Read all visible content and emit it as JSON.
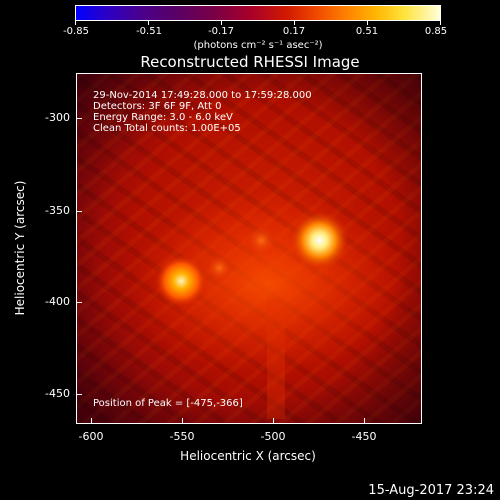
{
  "colorbar": {
    "ticks": [
      "-0.85",
      "-0.51",
      "-0.17",
      "0.17",
      "0.51",
      "0.85"
    ],
    "units": "(photons cm⁻² s⁻¹ asec⁻²)"
  },
  "plot": {
    "title": "Reconstructed RHESSI Image",
    "info_lines": [
      "29-Nov-2014 17:49:28.000 to 17:59:28.000",
      "Detectors: 3F 6F 9F, Att 0",
      "Energy Range: 3.0 - 6.0 keV",
      "Clean    Total counts: 1.00E+05"
    ],
    "peak": "Position of Peak = [-475,-366]",
    "xlabel": "Heliocentric X (arcsec)",
    "ylabel": "Heliocentric Y (arcsec)",
    "xticks": [
      "-600",
      "-550",
      "-500",
      "-450"
    ],
    "yticks": [
      "-300",
      "-350",
      "-400",
      "-450"
    ],
    "sources": [
      {
        "name": "primary",
        "x": -475,
        "y": -366
      },
      {
        "name": "secondary",
        "x": -551,
        "y": -388
      },
      {
        "name": "faint-1",
        "x": -507,
        "y": -366
      },
      {
        "name": "faint-2",
        "x": -530,
        "y": -381
      }
    ]
  },
  "timestamp": "15-Aug-2017 23:24"
}
